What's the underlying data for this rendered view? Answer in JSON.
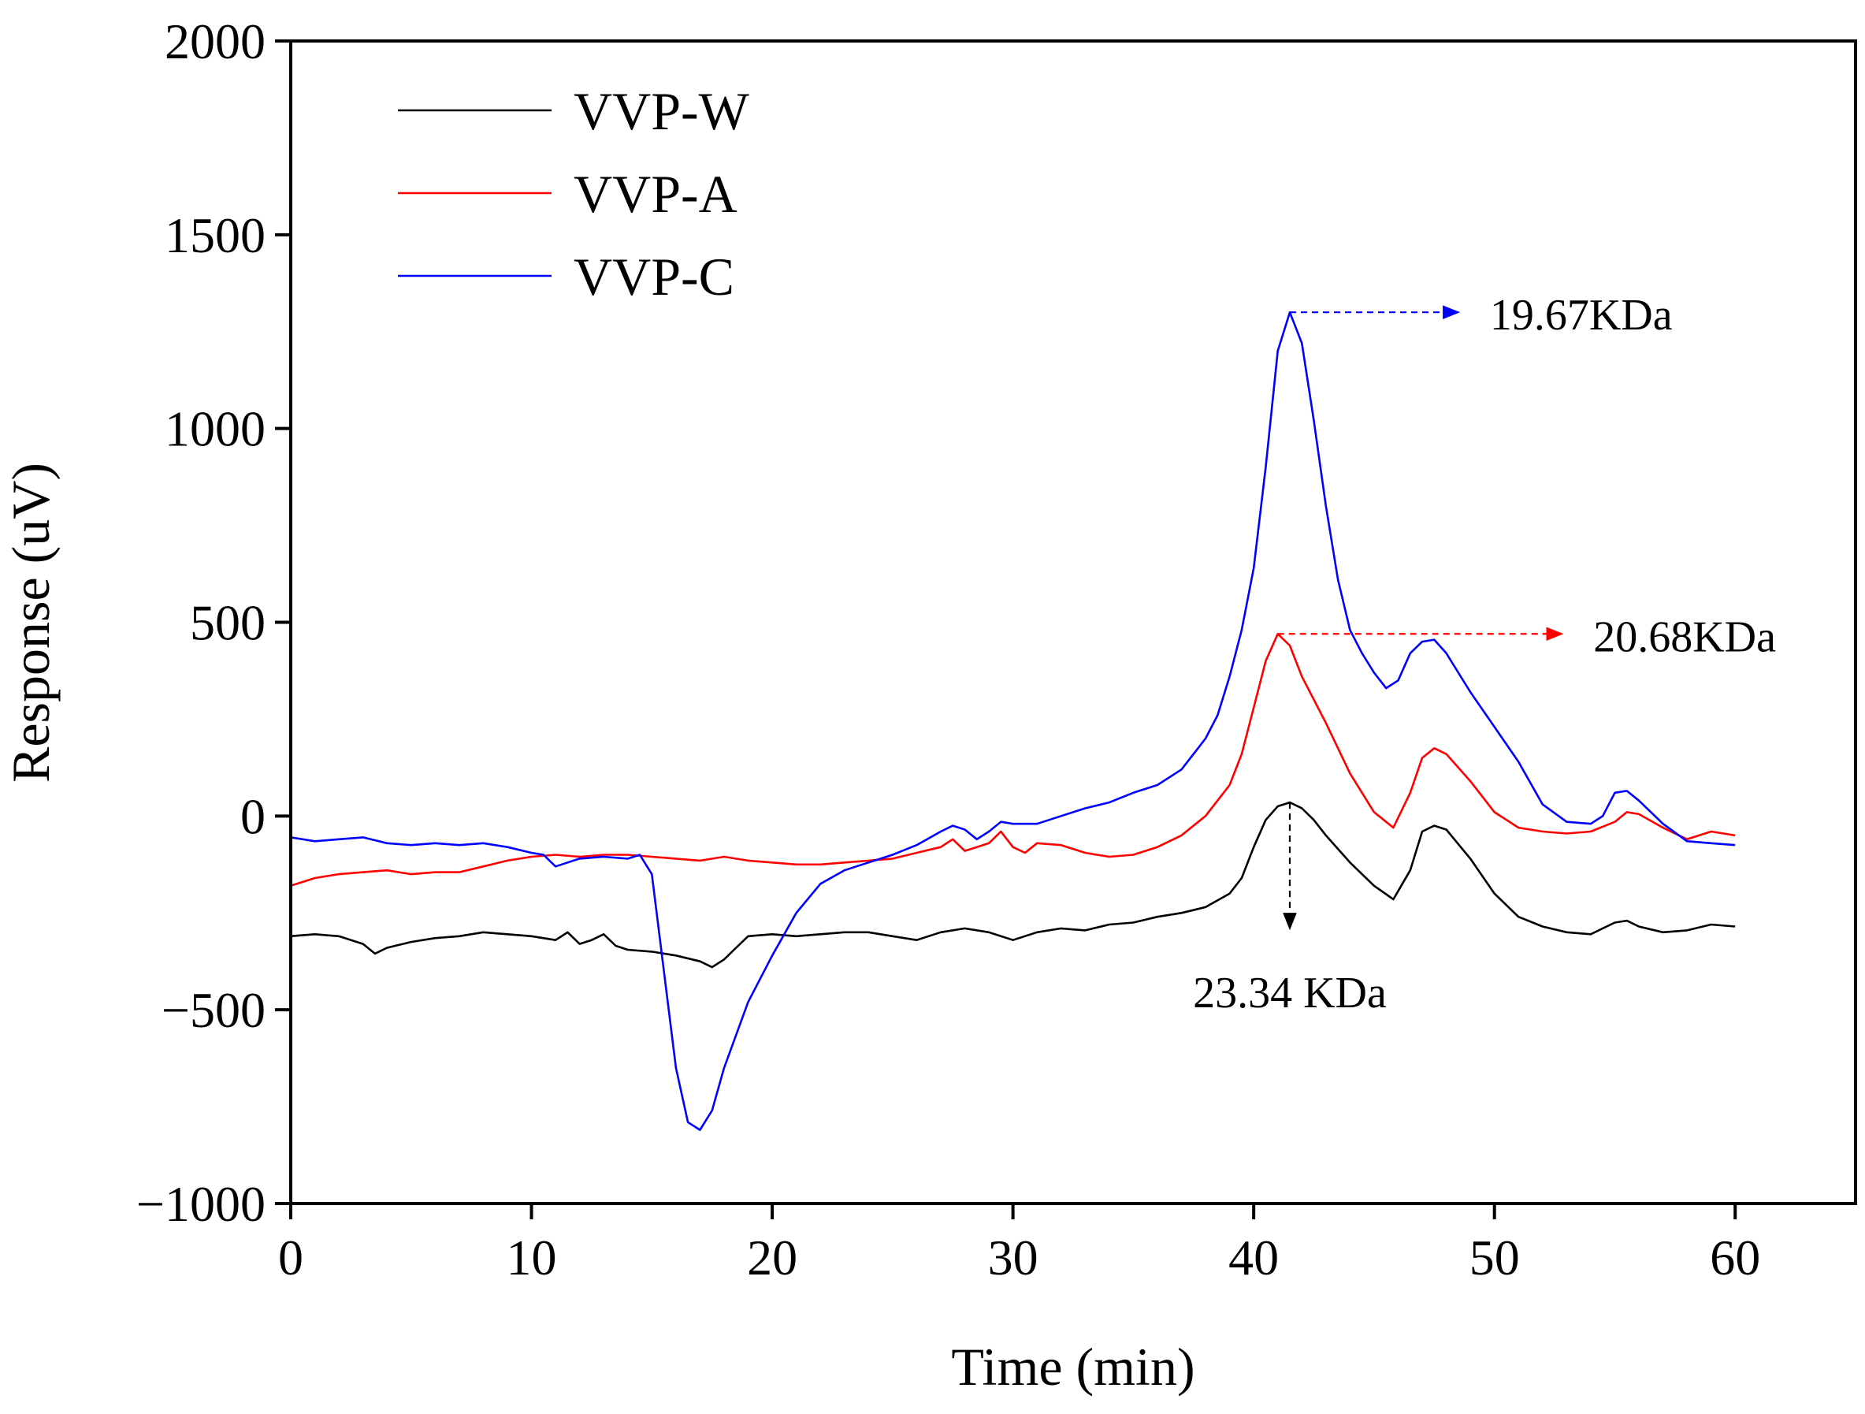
{
  "chart_data": {
    "type": "line",
    "title": "",
    "xlabel": "Time (min)",
    "ylabel": "Response (uV)",
    "xlim": [
      0,
      65
    ],
    "ylim": [
      -1000,
      2000
    ],
    "xticks": [
      0,
      10,
      20,
      30,
      40,
      50,
      60
    ],
    "yticks": [
      -1000,
      -500,
      0,
      500,
      1000,
      1500,
      2000
    ],
    "xtick_labels": [
      "0",
      "10",
      "20",
      "30",
      "40",
      "50",
      "60"
    ],
    "ytick_labels": [
      "−1000",
      "−500",
      "0",
      "500",
      "1000",
      "1500",
      "2000"
    ],
    "legend_position": "top-left",
    "series": [
      {
        "name": "VVP-W",
        "color": "#000000",
        "points": [
          [
            0,
            -310
          ],
          [
            1,
            -305
          ],
          [
            2,
            -310
          ],
          [
            3,
            -330
          ],
          [
            3.5,
            -355
          ],
          [
            4,
            -340
          ],
          [
            5,
            -325
          ],
          [
            6,
            -315
          ],
          [
            7,
            -310
          ],
          [
            8,
            -300
          ],
          [
            9,
            -305
          ],
          [
            10,
            -310
          ],
          [
            11,
            -320
          ],
          [
            11.5,
            -300
          ],
          [
            12,
            -330
          ],
          [
            12.5,
            -320
          ],
          [
            13,
            -305
          ],
          [
            13.5,
            -335
          ],
          [
            14,
            -345
          ],
          [
            15,
            -350
          ],
          [
            16,
            -360
          ],
          [
            17,
            -375
          ],
          [
            17.5,
            -390
          ],
          [
            18,
            -370
          ],
          [
            18.5,
            -340
          ],
          [
            19,
            -310
          ],
          [
            20,
            -305
          ],
          [
            21,
            -310
          ],
          [
            22,
            -305
          ],
          [
            23,
            -300
          ],
          [
            24,
            -300
          ],
          [
            25,
            -310
          ],
          [
            26,
            -320
          ],
          [
            27,
            -300
          ],
          [
            28,
            -290
          ],
          [
            29,
            -300
          ],
          [
            30,
            -320
          ],
          [
            31,
            -300
          ],
          [
            32,
            -290
          ],
          [
            33,
            -295
          ],
          [
            34,
            -280
          ],
          [
            35,
            -275
          ],
          [
            36,
            -260
          ],
          [
            37,
            -250
          ],
          [
            38,
            -235
          ],
          [
            39,
            -200
          ],
          [
            39.5,
            -160
          ],
          [
            40,
            -80
          ],
          [
            40.5,
            -10
          ],
          [
            41,
            25
          ],
          [
            41.5,
            35
          ],
          [
            42,
            20
          ],
          [
            42.5,
            -10
          ],
          [
            43,
            -50
          ],
          [
            44,
            -120
          ],
          [
            45,
            -180
          ],
          [
            45.8,
            -215
          ],
          [
            46.5,
            -140
          ],
          [
            47,
            -40
          ],
          [
            47.5,
            -25
          ],
          [
            48,
            -35
          ],
          [
            49,
            -110
          ],
          [
            50,
            -200
          ],
          [
            51,
            -260
          ],
          [
            52,
            -285
          ],
          [
            53,
            -300
          ],
          [
            54,
            -305
          ],
          [
            55,
            -275
          ],
          [
            55.5,
            -270
          ],
          [
            56,
            -285
          ],
          [
            57,
            -300
          ],
          [
            58,
            -295
          ],
          [
            59,
            -280
          ],
          [
            60,
            -285
          ]
        ]
      },
      {
        "name": "VVP-A",
        "color": "#ff0000",
        "points": [
          [
            0,
            -180
          ],
          [
            1,
            -160
          ],
          [
            2,
            -150
          ],
          [
            3,
            -145
          ],
          [
            4,
            -140
          ],
          [
            5,
            -150
          ],
          [
            6,
            -145
          ],
          [
            7,
            -145
          ],
          [
            8,
            -130
          ],
          [
            9,
            -115
          ],
          [
            10,
            -105
          ],
          [
            11,
            -100
          ],
          [
            12,
            -105
          ],
          [
            13,
            -100
          ],
          [
            14,
            -100
          ],
          [
            15,
            -105
          ],
          [
            16,
            -110
          ],
          [
            17,
            -115
          ],
          [
            18,
            -105
          ],
          [
            19,
            -115
          ],
          [
            20,
            -120
          ],
          [
            21,
            -125
          ],
          [
            22,
            -125
          ],
          [
            23,
            -120
          ],
          [
            24,
            -115
          ],
          [
            25,
            -110
          ],
          [
            26,
            -95
          ],
          [
            27,
            -80
          ],
          [
            27.5,
            -60
          ],
          [
            28,
            -90
          ],
          [
            28.5,
            -80
          ],
          [
            29,
            -70
          ],
          [
            29.5,
            -40
          ],
          [
            30,
            -80
          ],
          [
            30.5,
            -95
          ],
          [
            31,
            -70
          ],
          [
            32,
            -75
          ],
          [
            33,
            -95
          ],
          [
            34,
            -105
          ],
          [
            35,
            -100
          ],
          [
            36,
            -80
          ],
          [
            37,
            -50
          ],
          [
            38,
            0
          ],
          [
            39,
            80
          ],
          [
            39.5,
            160
          ],
          [
            40,
            280
          ],
          [
            40.5,
            400
          ],
          [
            41,
            470
          ],
          [
            41.5,
            440
          ],
          [
            42,
            360
          ],
          [
            43,
            240
          ],
          [
            44,
            110
          ],
          [
            45,
            10
          ],
          [
            45.8,
            -30
          ],
          [
            46.5,
            60
          ],
          [
            47,
            150
          ],
          [
            47.5,
            175
          ],
          [
            48,
            160
          ],
          [
            49,
            90
          ],
          [
            50,
            10
          ],
          [
            51,
            -30
          ],
          [
            52,
            -40
          ],
          [
            53,
            -45
          ],
          [
            54,
            -40
          ],
          [
            55,
            -15
          ],
          [
            55.5,
            10
          ],
          [
            56,
            5
          ],
          [
            57,
            -30
          ],
          [
            58,
            -60
          ],
          [
            59,
            -40
          ],
          [
            60,
            -50
          ]
        ]
      },
      {
        "name": "VVP-C",
        "color": "#0000ff",
        "points": [
          [
            0,
            -55
          ],
          [
            1,
            -65
          ],
          [
            2,
            -60
          ],
          [
            3,
            -55
          ],
          [
            4,
            -70
          ],
          [
            5,
            -75
          ],
          [
            6,
            -70
          ],
          [
            7,
            -75
          ],
          [
            8,
            -70
          ],
          [
            9,
            -80
          ],
          [
            10,
            -95
          ],
          [
            10.5,
            -100
          ],
          [
            11,
            -130
          ],
          [
            11.5,
            -120
          ],
          [
            12,
            -110
          ],
          [
            13,
            -105
          ],
          [
            14,
            -110
          ],
          [
            14.5,
            -100
          ],
          [
            15,
            -150
          ],
          [
            15.5,
            -400
          ],
          [
            16,
            -650
          ],
          [
            16.5,
            -790
          ],
          [
            17,
            -810
          ],
          [
            17.5,
            -760
          ],
          [
            18,
            -650
          ],
          [
            19,
            -480
          ],
          [
            20,
            -360
          ],
          [
            21,
            -250
          ],
          [
            22,
            -175
          ],
          [
            23,
            -140
          ],
          [
            24,
            -120
          ],
          [
            25,
            -100
          ],
          [
            26,
            -75
          ],
          [
            27,
            -40
          ],
          [
            27.5,
            -25
          ],
          [
            28,
            -35
          ],
          [
            28.5,
            -60
          ],
          [
            29,
            -40
          ],
          [
            29.5,
            -15
          ],
          [
            30,
            -20
          ],
          [
            31,
            -20
          ],
          [
            32,
            0
          ],
          [
            33,
            20
          ],
          [
            34,
            35
          ],
          [
            35,
            60
          ],
          [
            36,
            80
          ],
          [
            37,
            120
          ],
          [
            38,
            200
          ],
          [
            38.5,
            260
          ],
          [
            39,
            360
          ],
          [
            39.5,
            480
          ],
          [
            40,
            640
          ],
          [
            40.5,
            900
          ],
          [
            41,
            1200
          ],
          [
            41.5,
            1300
          ],
          [
            42,
            1220
          ],
          [
            42.5,
            1020
          ],
          [
            43,
            800
          ],
          [
            43.5,
            610
          ],
          [
            44,
            480
          ],
          [
            44.5,
            420
          ],
          [
            45,
            370
          ],
          [
            45.5,
            330
          ],
          [
            46,
            350
          ],
          [
            46.5,
            420
          ],
          [
            47,
            450
          ],
          [
            47.5,
            455
          ],
          [
            48,
            420
          ],
          [
            49,
            320
          ],
          [
            50,
            230
          ],
          [
            51,
            140
          ],
          [
            52,
            30
          ],
          [
            53,
            -15
          ],
          [
            54,
            -20
          ],
          [
            54.5,
            0
          ],
          [
            55,
            60
          ],
          [
            55.5,
            65
          ],
          [
            56,
            40
          ],
          [
            57,
            -20
          ],
          [
            58,
            -65
          ],
          [
            59,
            -70
          ],
          [
            60,
            -75
          ]
        ]
      }
    ],
    "annotations": [
      {
        "label": "19.67KDa",
        "series": "VVP-C",
        "x": 41.5,
        "y": 1300,
        "direction": "right",
        "x_end": 48.5,
        "color": "#0000ff"
      },
      {
        "label": "20.68KDa",
        "series": "VVP-A",
        "x": 41,
        "y": 470,
        "direction": "right",
        "x_end": 52.8,
        "color": "#ff0000"
      },
      {
        "label": "23.34 KDa",
        "series": "VVP-W",
        "x": 41.5,
        "y": 35,
        "direction": "down",
        "y_end": -290,
        "color": "#000000"
      }
    ]
  }
}
